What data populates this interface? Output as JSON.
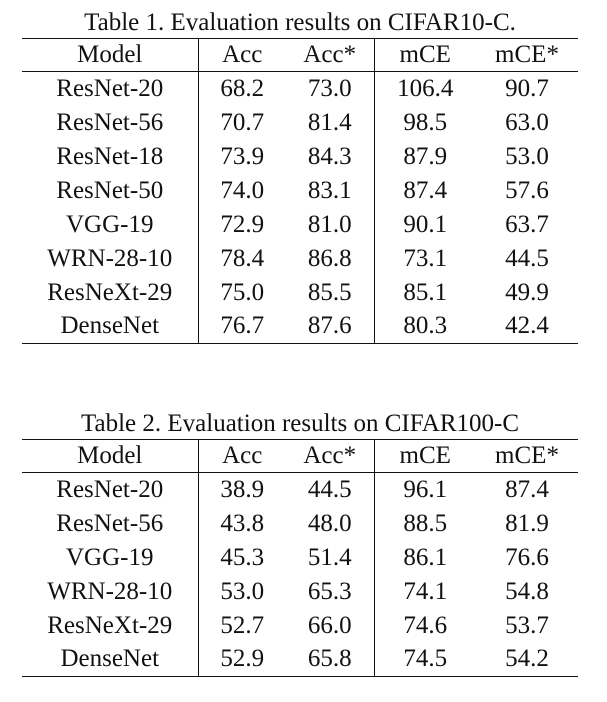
{
  "tables": [
    {
      "caption": "Table 1. Evaluation results on CIFAR10-C.",
      "headers": [
        "Model",
        "Acc",
        "Acc*",
        "mCE",
        "mCE*"
      ],
      "rows": [
        [
          "ResNet-20",
          "68.2",
          "73.0",
          "106.4",
          "90.7"
        ],
        [
          "ResNet-56",
          "70.7",
          "81.4",
          "98.5",
          "63.0"
        ],
        [
          "ResNet-18",
          "73.9",
          "84.3",
          "87.9",
          "53.0"
        ],
        [
          "ResNet-50",
          "74.0",
          "83.1",
          "87.4",
          "57.6"
        ],
        [
          "VGG-19",
          "72.9",
          "81.0",
          "90.1",
          "63.7"
        ],
        [
          "WRN-28-10",
          "78.4",
          "86.8",
          "73.1",
          "44.5"
        ],
        [
          "ResNeXt-29",
          "75.0",
          "85.5",
          "85.1",
          "49.9"
        ],
        [
          "DenseNet",
          "76.7",
          "87.6",
          "80.3",
          "42.4"
        ]
      ]
    },
    {
      "caption": "Table 2. Evaluation results on CIFAR100-C",
      "headers": [
        "Model",
        "Acc",
        "Acc*",
        "mCE",
        "mCE*"
      ],
      "rows": [
        [
          "ResNet-20",
          "38.9",
          "44.5",
          "96.1",
          "87.4"
        ],
        [
          "ResNet-56",
          "43.8",
          "48.0",
          "88.5",
          "81.9"
        ],
        [
          "VGG-19",
          "45.3",
          "51.4",
          "86.1",
          "76.6"
        ],
        [
          "WRN-28-10",
          "53.0",
          "65.3",
          "74.1",
          "54.8"
        ],
        [
          "ResNeXt-29",
          "52.7",
          "66.0",
          "74.6",
          "53.7"
        ],
        [
          "DenseNet",
          "52.9",
          "65.8",
          "74.5",
          "54.2"
        ]
      ]
    }
  ]
}
